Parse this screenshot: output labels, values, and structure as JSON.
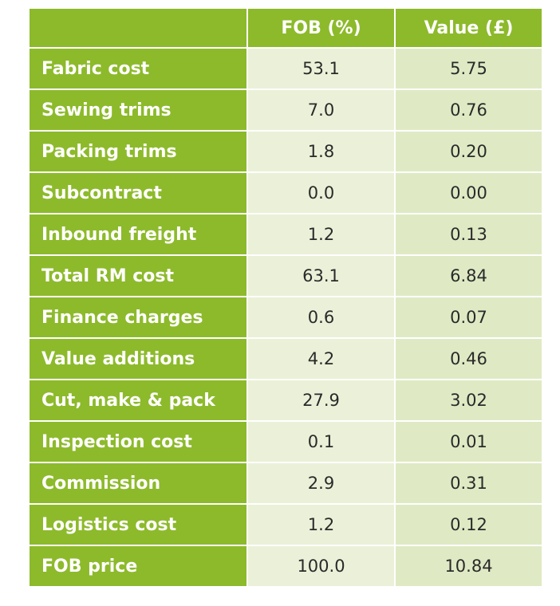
{
  "table": {
    "headers": {
      "label": "",
      "fob": "FOB (%)",
      "value": "Value (£)"
    },
    "rows": [
      {
        "label": "Fabric cost",
        "fob": "53.1",
        "value": "5.75"
      },
      {
        "label": "Sewing trims",
        "fob": "7.0",
        "value": "0.76"
      },
      {
        "label": "Packing trims",
        "fob": "1.8",
        "value": "0.20"
      },
      {
        "label": "Subcontract",
        "fob": "0.0",
        "value": "0.00"
      },
      {
        "label": "Inbound freight",
        "fob": "1.2",
        "value": "0.13"
      },
      {
        "label": "Total RM cost",
        "fob": "63.1",
        "value": "6.84"
      },
      {
        "label": "Finance charges",
        "fob": "0.6",
        "value": "0.07"
      },
      {
        "label": "Value additions",
        "fob": "4.2",
        "value": "0.46"
      },
      {
        "label": "Cut, make & pack",
        "fob": "27.9",
        "value": "3.02"
      },
      {
        "label": "Inspection cost",
        "fob": "0.1",
        "value": "0.01"
      },
      {
        "label": "Commission",
        "fob": "2.9",
        "value": "0.31"
      },
      {
        "label": "Logistics cost",
        "fob": "1.2",
        "value": "0.12"
      },
      {
        "label": "FOB price",
        "fob": "100.0",
        "value": "10.84"
      }
    ]
  },
  "colors": {
    "header_green": "#8dba2b",
    "cell_light": "#eaf1d8",
    "cell_lighter": "#dfeac4"
  }
}
